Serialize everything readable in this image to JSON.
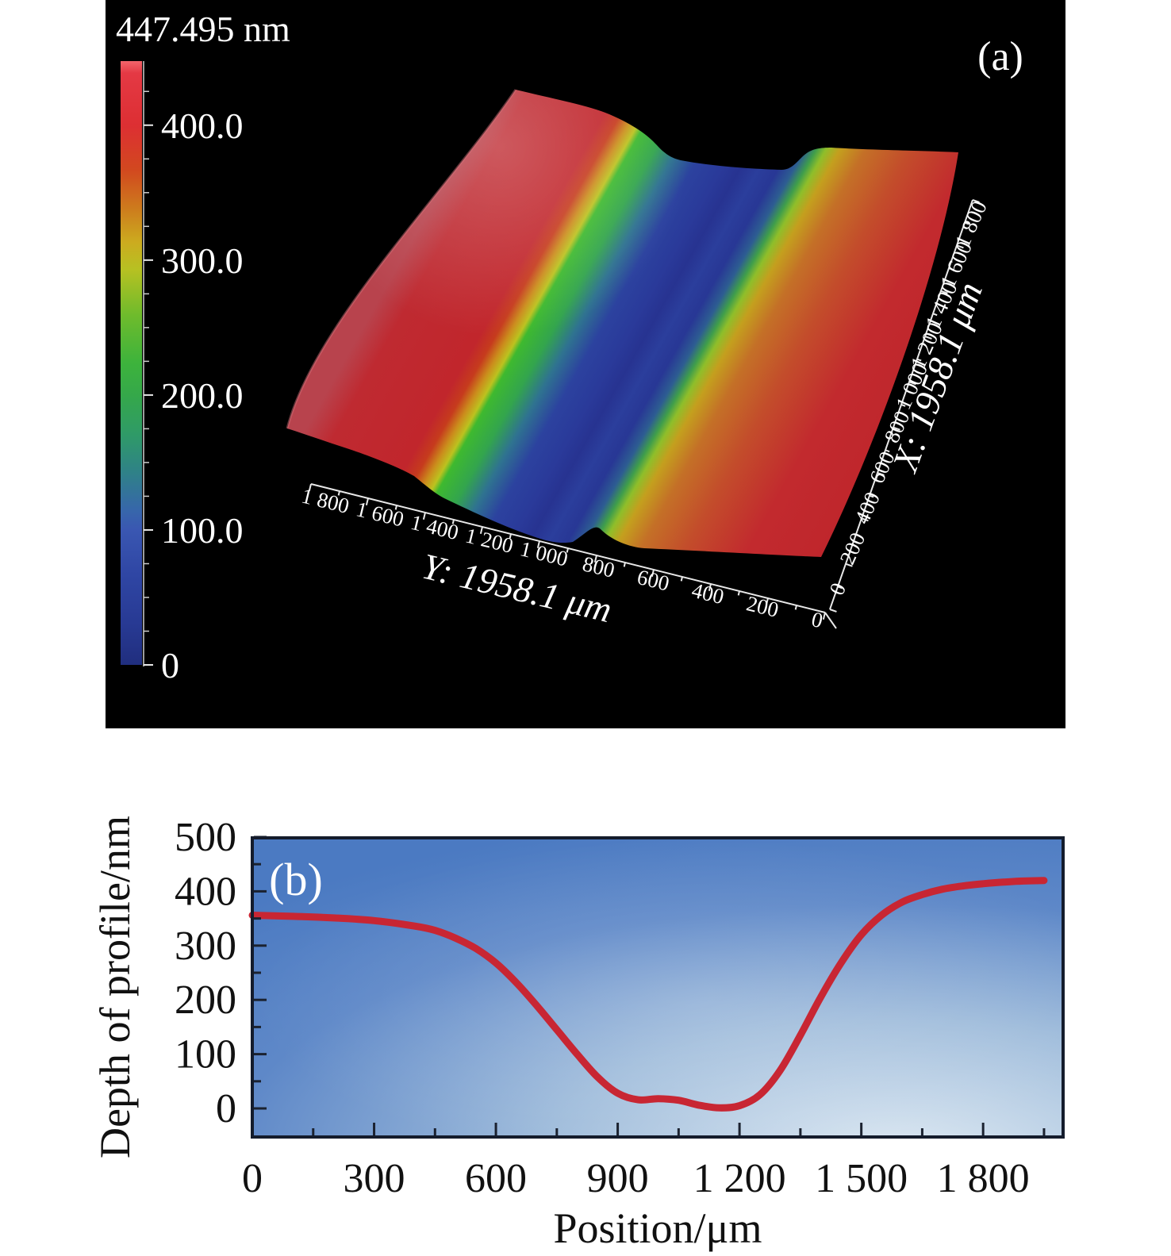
{
  "figure": {
    "background": "#ffffff",
    "panel_a": {
      "label": "(a)",
      "background": "#000000",
      "scale_bar": {
        "title": "447.495 nm",
        "unit": "nm",
        "max_nm": 447.495,
        "min_nm": 0,
        "tick_labels": [
          "400.0",
          "300.0",
          "200.0",
          "100.0",
          "0"
        ],
        "tick_values_nm": [
          400,
          300,
          200,
          100,
          0
        ]
      },
      "y_axis": {
        "title": "Y: 1958.1 μm",
        "tick_labels": [
          "1 800",
          "1 600",
          "1 400",
          "1 200",
          "1 000",
          "800",
          "600",
          "400",
          "200",
          "0"
        ]
      },
      "x_axis": {
        "title": "X: 1958.1 μm",
        "tick_labels": [
          "0",
          "200",
          "400",
          "600",
          "800",
          "1 000",
          "1 200",
          "1 400",
          "1 600",
          "1 800"
        ]
      }
    },
    "panel_b": {
      "label": "(b)",
      "xlabel": "Position/μm",
      "ylabel": "Depth of profile/nm",
      "x_tick_labels": [
        "0",
        "300",
        "600",
        "900",
        "1 200",
        "1 500",
        "1 800"
      ],
      "x_tick_values": [
        0,
        300,
        600,
        900,
        1200,
        1500,
        1800
      ],
      "y_tick_labels": [
        "500",
        "400",
        "300",
        "200",
        "100",
        "0"
      ],
      "y_tick_values": [
        500,
        400,
        300,
        200,
        100,
        0
      ],
      "curve_color": "#c82633"
    }
  },
  "chart_data": [
    {
      "id": "panel_a_surface",
      "type": "heatmap",
      "projection": "3d-surface",
      "title": "447.495 nm",
      "x_axis": {
        "label": "X: 1958.1 μm",
        "unit": "μm",
        "range": [
          0,
          1958.1
        ],
        "ticks": [
          0,
          200,
          400,
          600,
          800,
          1000,
          1200,
          1400,
          1600,
          1800
        ]
      },
      "y_axis": {
        "label": "Y: 1958.1 μm",
        "unit": "μm",
        "range": [
          0,
          1958.1
        ],
        "ticks": [
          0,
          200,
          400,
          600,
          800,
          1000,
          1200,
          1400,
          1600,
          1800
        ]
      },
      "z_colorbar": {
        "unit": "nm",
        "min": 0,
        "max": 447.495,
        "ticks": [
          400,
          300,
          200,
          100,
          0
        ],
        "colors": [
          [
            447.5,
            "#e43944"
          ],
          [
            400,
            "#dd2f33"
          ],
          [
            350,
            "#cd7c1d"
          ],
          [
            300,
            "#ccab1f"
          ],
          [
            250,
            "#6fbb2c"
          ],
          [
            200,
            "#35a84a"
          ],
          [
            150,
            "#2f8f78"
          ],
          [
            100,
            "#3a57b2"
          ],
          [
            0,
            "#202e7e"
          ]
        ]
      },
      "features": "flat-bottomed groove running parallel to the X axis; groove floor ~0-20 nm (blue), walls rising through green (~200 nm) to plateaus ~350-430 nm (red) on both sides"
    },
    {
      "id": "panel_b_profile",
      "type": "line",
      "title": "",
      "xlabel": "Position/μm",
      "ylabel": "Depth of profile/nm",
      "xlim": [
        0,
        2000
      ],
      "ylim": [
        -50,
        505
      ],
      "x_ticks": [
        0,
        300,
        600,
        900,
        1200,
        1500,
        1800
      ],
      "y_ticks": [
        0,
        100,
        200,
        300,
        400,
        500
      ],
      "grid": false,
      "legend": "none",
      "series": [
        {
          "name": "depth profile",
          "color": "#c82633",
          "points": [
            [
              0,
              356
            ],
            [
              100,
              354
            ],
            [
              200,
              351
            ],
            [
              300,
              346
            ],
            [
              400,
              336
            ],
            [
              450,
              328
            ],
            [
              500,
              314
            ],
            [
              550,
              295
            ],
            [
              600,
              268
            ],
            [
              650,
              232
            ],
            [
              700,
              190
            ],
            [
              750,
              145
            ],
            [
              800,
              100
            ],
            [
              850,
              58
            ],
            [
              900,
              28
            ],
            [
              950,
              16
            ],
            [
              1000,
              18
            ],
            [
              1050,
              15
            ],
            [
              1100,
              6
            ],
            [
              1150,
              1
            ],
            [
              1200,
              5
            ],
            [
              1250,
              25
            ],
            [
              1300,
              70
            ],
            [
              1350,
              135
            ],
            [
              1400,
              205
            ],
            [
              1450,
              268
            ],
            [
              1500,
              320
            ],
            [
              1550,
              356
            ],
            [
              1600,
              380
            ],
            [
              1650,
              394
            ],
            [
              1700,
              404
            ],
            [
              1750,
              410
            ],
            [
              1800,
              414
            ],
            [
              1850,
              417
            ],
            [
              1900,
              419
            ],
            [
              1950,
              420
            ]
          ]
        }
      ]
    }
  ]
}
